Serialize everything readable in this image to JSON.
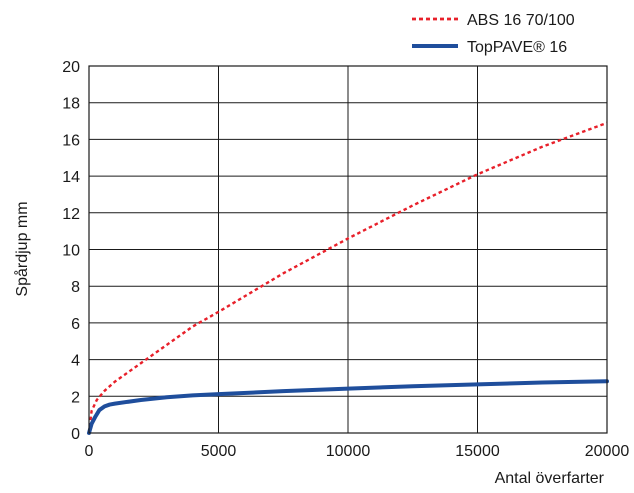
{
  "chart_data": {
    "type": "line",
    "title": "",
    "xlabel": "Antal överfarter",
    "ylabel": "Spårdjup mm",
    "xlim": [
      0,
      20000
    ],
    "ylim": [
      0,
      20
    ],
    "x_ticks": [
      0,
      5000,
      10000,
      15000,
      20000
    ],
    "y_ticks": [
      0,
      2,
      4,
      6,
      8,
      10,
      12,
      14,
      16,
      18,
      20
    ],
    "grid": true,
    "legend_position": "top-right, above plot",
    "series": [
      {
        "name": "ABS 16 70/100",
        "color": "#e8202a",
        "line_style": "dotted",
        "x": [
          0,
          100,
          300,
          600,
          1000,
          2000,
          3000,
          4000,
          5000,
          7500,
          10000,
          12500,
          15000,
          17500,
          20000
        ],
        "y": [
          0,
          1.2,
          1.8,
          2.3,
          2.8,
          3.8,
          4.8,
          5.8,
          6.6,
          8.7,
          10.6,
          12.4,
          14.1,
          15.6,
          16.9
        ]
      },
      {
        "name": "TopPAVE® 16",
        "color": "#1f4e9c",
        "line_style": "solid",
        "x": [
          0,
          100,
          250,
          400,
          600,
          800,
          1000,
          2000,
          3000,
          4000,
          5000,
          7500,
          10000,
          12500,
          15000,
          17500,
          20000
        ],
        "y": [
          0,
          0.5,
          0.9,
          1.25,
          1.45,
          1.55,
          1.6,
          1.8,
          1.95,
          2.05,
          2.12,
          2.28,
          2.42,
          2.55,
          2.65,
          2.75,
          2.82
        ]
      }
    ]
  }
}
